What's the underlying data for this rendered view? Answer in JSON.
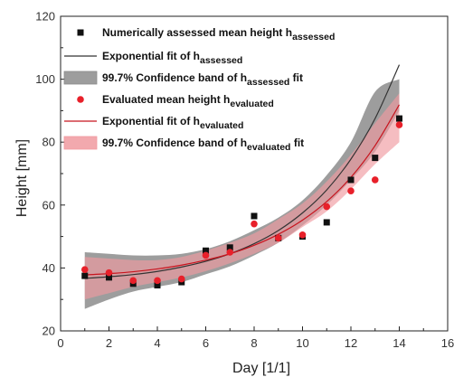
{
  "chart_data": {
    "type": "scatter",
    "xlabel": "Day [1/1]",
    "ylabel": "Height [mm]",
    "xlim": [
      0,
      16
    ],
    "ylim": [
      20,
      120
    ],
    "xticks": [
      0,
      2,
      4,
      6,
      8,
      10,
      12,
      14,
      16
    ],
    "yticks": [
      20,
      40,
      60,
      80,
      100,
      120
    ],
    "grid": false,
    "legend_placement": "top-left",
    "series": [
      {
        "name": "Numerically assessed mean height h_assessed",
        "kind": "points",
        "marker": "square",
        "color": "#111111",
        "x": [
          1,
          2,
          3,
          4,
          5,
          6,
          7,
          8,
          9,
          10,
          11,
          12,
          13,
          14
        ],
        "y": [
          37.5,
          37,
          35,
          34.5,
          35.5,
          45.5,
          46.5,
          56.5,
          49.5,
          50,
          54.5,
          68,
          75,
          87.5
        ]
      },
      {
        "name": "Exponential fit of h_assessed",
        "kind": "line",
        "color": "#333333",
        "x": [
          1,
          2,
          3,
          4,
          5,
          6,
          7,
          8,
          9,
          10,
          11,
          12,
          13,
          14
        ],
        "y": [
          36.7,
          37.2,
          37.9,
          38.9,
          40.3,
          42.1,
          44.5,
          47.7,
          51.9,
          57.5,
          64.8,
          74.6,
          87.5,
          104.6
        ]
      },
      {
        "name": "99.7% Confidence band of h_assessed fit",
        "kind": "band",
        "color": "#8c8c8c",
        "x": [
          1,
          2,
          3,
          4,
          5,
          6,
          7,
          8,
          9,
          10,
          11,
          12,
          13,
          14
        ],
        "lower": [
          27,
          30,
          32.5,
          34,
          35.5,
          38,
          40.5,
          44,
          48,
          53.5,
          60,
          68,
          77,
          90
        ],
        "upper": [
          45,
          44.5,
          44,
          44,
          44.5,
          46,
          48.5,
          52,
          56,
          61.5,
          69.5,
          80,
          96,
          100
        ]
      },
      {
        "name": "Evaluated mean height h_evaluated",
        "kind": "points",
        "marker": "circle",
        "color": "#e8202a",
        "x": [
          1,
          2,
          3,
          4,
          5,
          6,
          7,
          8,
          9,
          10,
          11,
          12,
          13,
          14
        ],
        "y": [
          39.5,
          38.5,
          36,
          36,
          36.5,
          44,
          45,
          54,
          49.5,
          50.5,
          59.5,
          64.5,
          68,
          85.5
        ]
      },
      {
        "name": "Exponential fit of h_evaluated",
        "kind": "line",
        "color": "#c8141e",
        "x": [
          1,
          2,
          3,
          4,
          5,
          6,
          7,
          8,
          9,
          10,
          11,
          12,
          13,
          14
        ],
        "y": [
          37.8,
          38.2,
          38.8,
          39.7,
          40.9,
          42.5,
          44.5,
          47.2,
          50.7,
          55.2,
          61.1,
          68.8,
          78.9,
          91.9
        ]
      },
      {
        "name": "99.7% Confidence band of h_evaluated fit",
        "kind": "band",
        "color": "#f09aa0",
        "x": [
          1,
          2,
          3,
          4,
          5,
          6,
          7,
          8,
          9,
          10,
          11,
          12,
          13,
          14
        ],
        "lower": [
          30,
          32,
          34,
          35.5,
          37,
          39,
          41.5,
          44.5,
          48,
          53,
          58,
          65,
          73,
          80
        ],
        "upper": [
          43.5,
          43,
          42.5,
          42.5,
          43.5,
          45.5,
          48,
          51,
          55.5,
          60.5,
          67.5,
          76,
          86,
          95.5
        ]
      }
    ]
  },
  "legend": [
    {
      "symbol": "square",
      "color": "#111111",
      "text": "Numerically assessed mean height h",
      "sub": "assessed"
    },
    {
      "symbol": "line",
      "color": "#333333",
      "text": "Exponential fit of h",
      "sub": "assessed"
    },
    {
      "symbol": "band",
      "color": "#8c8c8c",
      "text": "99.7% Confidence band of h",
      "sub": "assessed",
      "suffix": " fit"
    },
    {
      "symbol": "circle",
      "color": "#e8202a",
      "text": "Evaluated mean height h",
      "sub": "evaluated"
    },
    {
      "symbol": "line",
      "color": "#c8141e",
      "text": "Exponential fit of h",
      "sub": "evaluated"
    },
    {
      "symbol": "band",
      "color": "#f09aa0",
      "text": "99.7% Confidence band of h",
      "sub": "evaluated",
      "suffix": " fit"
    }
  ]
}
